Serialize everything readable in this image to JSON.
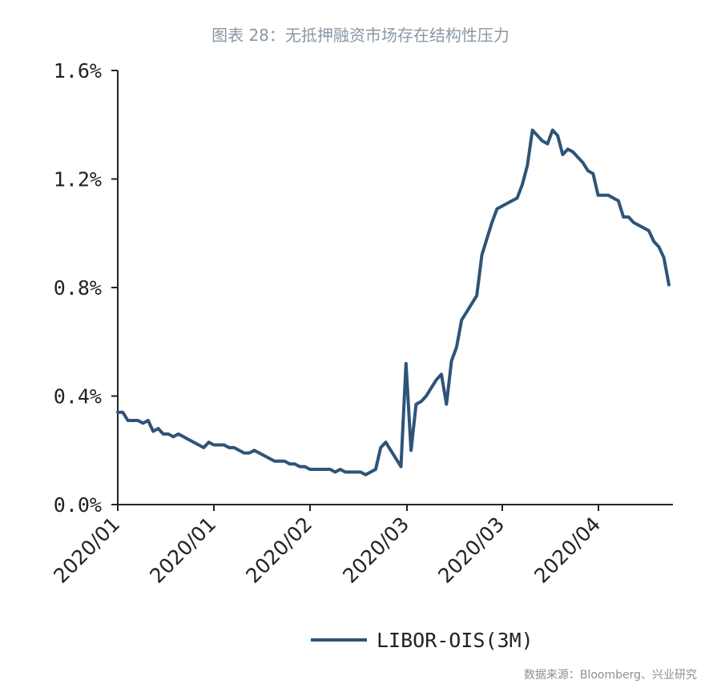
{
  "title": "图表 28：无抵押融资市场存在结构性压力",
  "source": "数据来源：Bloomberg、兴业研究",
  "colors": {
    "series": "#2e5478",
    "axis": "#222222",
    "title": "#8a97a3"
  },
  "chart_data": {
    "type": "line",
    "title": "图表 28：无抵押融资市场存在结构性压力",
    "xlabel": "",
    "ylabel": "",
    "ylim": [
      0,
      1.6
    ],
    "y_ticks": [
      "0.0%",
      "0.4%",
      "0.8%",
      "1.2%",
      "1.6%"
    ],
    "x_tick_labels": [
      "2020/01",
      "2020/01",
      "2020/01",
      "2020/02",
      "2020/03",
      "2020/03",
      "2020/04"
    ],
    "legend": "bottom",
    "grid": false,
    "series": [
      {
        "name": "LIBOR-OIS(3M)",
        "color": "#2e5478",
        "values": [
          0.34,
          0.34,
          0.31,
          0.31,
          0.31,
          0.3,
          0.31,
          0.27,
          0.28,
          0.26,
          0.26,
          0.25,
          0.26,
          0.25,
          0.24,
          0.23,
          0.22,
          0.21,
          0.23,
          0.22,
          0.22,
          0.22,
          0.21,
          0.21,
          0.2,
          0.19,
          0.19,
          0.2,
          0.19,
          0.18,
          0.17,
          0.16,
          0.16,
          0.16,
          0.15,
          0.15,
          0.14,
          0.14,
          0.13,
          0.13,
          0.13,
          0.13,
          0.13,
          0.12,
          0.13,
          0.12,
          0.12,
          0.12,
          0.12,
          0.11,
          0.12,
          0.13,
          0.21,
          0.23,
          0.2,
          0.17,
          0.14,
          0.52,
          0.2,
          0.37,
          0.38,
          0.4,
          0.43,
          0.46,
          0.48,
          0.37,
          0.53,
          0.58,
          0.68,
          0.71,
          0.74,
          0.77,
          0.92,
          0.98,
          1.04,
          1.09,
          1.1,
          1.11,
          1.12,
          1.13,
          1.18,
          1.25,
          1.38,
          1.36,
          1.34,
          1.33,
          1.38,
          1.36,
          1.29,
          1.31,
          1.3,
          1.28,
          1.26,
          1.23,
          1.22,
          1.14,
          1.14,
          1.14,
          1.13,
          1.12,
          1.06,
          1.06,
          1.04,
          1.03,
          1.02,
          1.01,
          0.97,
          0.95,
          0.91,
          0.81
        ]
      }
    ]
  }
}
